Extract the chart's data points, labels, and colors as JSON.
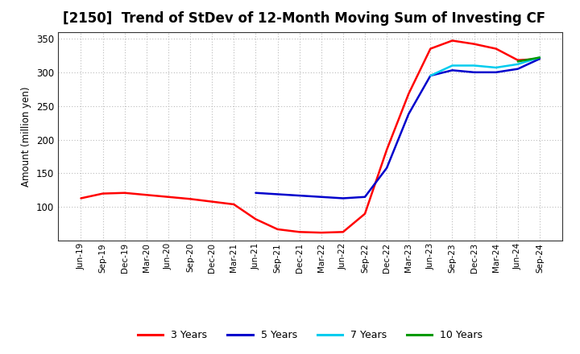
{
  "title": "[2150]  Trend of StDev of 12-Month Moving Sum of Investing CF",
  "ylabel": "Amount (million yen)",
  "ylim": [
    50,
    360
  ],
  "yticks": [
    100,
    150,
    200,
    250,
    300,
    350
  ],
  "background_color": "#ffffff",
  "grid_color": "#bbbbbb",
  "title_fontsize": 12,
  "legend_entries": [
    "3 Years",
    "5 Years",
    "7 Years",
    "10 Years"
  ],
  "legend_colors": [
    "#ff0000",
    "#0000cc",
    "#00ccee",
    "#009900"
  ],
  "x_labels": [
    "Jun-19",
    "Sep-19",
    "Dec-19",
    "Mar-20",
    "Jun-20",
    "Sep-20",
    "Dec-20",
    "Mar-21",
    "Jun-21",
    "Sep-21",
    "Dec-21",
    "Mar-22",
    "Jun-22",
    "Sep-22",
    "Dec-22",
    "Mar-23",
    "Jun-23",
    "Sep-23",
    "Dec-23",
    "Mar-24",
    "Jun-24",
    "Sep-24"
  ],
  "series_3y": [
    113,
    120,
    121,
    118,
    115,
    112,
    108,
    104,
    82,
    67,
    63,
    62,
    63,
    90,
    185,
    268,
    335,
    347,
    342,
    335,
    318,
    320
  ],
  "series_5y": [
    null,
    null,
    null,
    null,
    null,
    null,
    null,
    null,
    121,
    119,
    117,
    115,
    113,
    115,
    158,
    238,
    295,
    303,
    300,
    300,
    305,
    320
  ],
  "series_7y": [
    null,
    null,
    null,
    null,
    null,
    null,
    null,
    null,
    null,
    null,
    null,
    null,
    null,
    null,
    null,
    null,
    295,
    310,
    310,
    307,
    312,
    322
  ],
  "series_10y": [
    null,
    null,
    null,
    null,
    null,
    null,
    null,
    null,
    null,
    null,
    null,
    null,
    null,
    null,
    null,
    null,
    null,
    null,
    null,
    null,
    316,
    322
  ]
}
